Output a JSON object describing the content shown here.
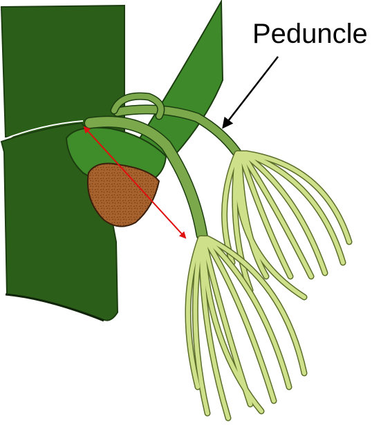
{
  "labels": {
    "peduncle": "Peduncle"
  },
  "colors": {
    "stem_dark": "#2b5e18",
    "stem_outline": "#1c3d10",
    "leaf_green": "#3e8a2a",
    "bract_green": "#3f8c2b",
    "peduncle_green": "#7aa84a",
    "flower_light": "#cfe08a",
    "flower_outline": "#5b6e2a",
    "bud_brown": "#a8622e",
    "arrow_red": "#e01010",
    "arrow_black": "#000000"
  }
}
